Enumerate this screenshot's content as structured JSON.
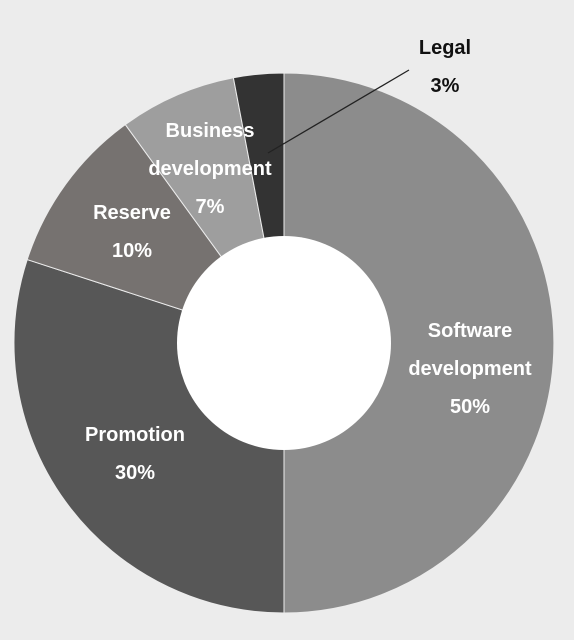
{
  "chart_data": {
    "type": "pie",
    "title": "",
    "background": "#ececec",
    "slices": [
      {
        "label": "Software development",
        "label_lines": [
          "Software",
          "development"
        ],
        "value": 50,
        "display": "50%",
        "color": "#8c8c8c",
        "text_color": "#ffffff"
      },
      {
        "label": "Promotion",
        "label_lines": [
          "Promotion"
        ],
        "value": 30,
        "display": "30%",
        "color": "#575757",
        "text_color": "#ffffff"
      },
      {
        "label": "Reserve",
        "label_lines": [
          "Reserve"
        ],
        "value": 10,
        "display": "10%",
        "color": "#767270",
        "text_color": "#ffffff"
      },
      {
        "label": "Business development",
        "label_lines": [
          "Business",
          "development"
        ],
        "value": 7,
        "display": "7%",
        "color": "#9e9e9e",
        "text_color": "#ffffff"
      },
      {
        "label": "Legal",
        "label_lines": [
          "Legal"
        ],
        "value": 3,
        "display": "3%",
        "color": "#333333",
        "text_color": "#111111"
      }
    ],
    "start_angle": "12 o'clock",
    "direction": "clockwise",
    "donut": true
  }
}
